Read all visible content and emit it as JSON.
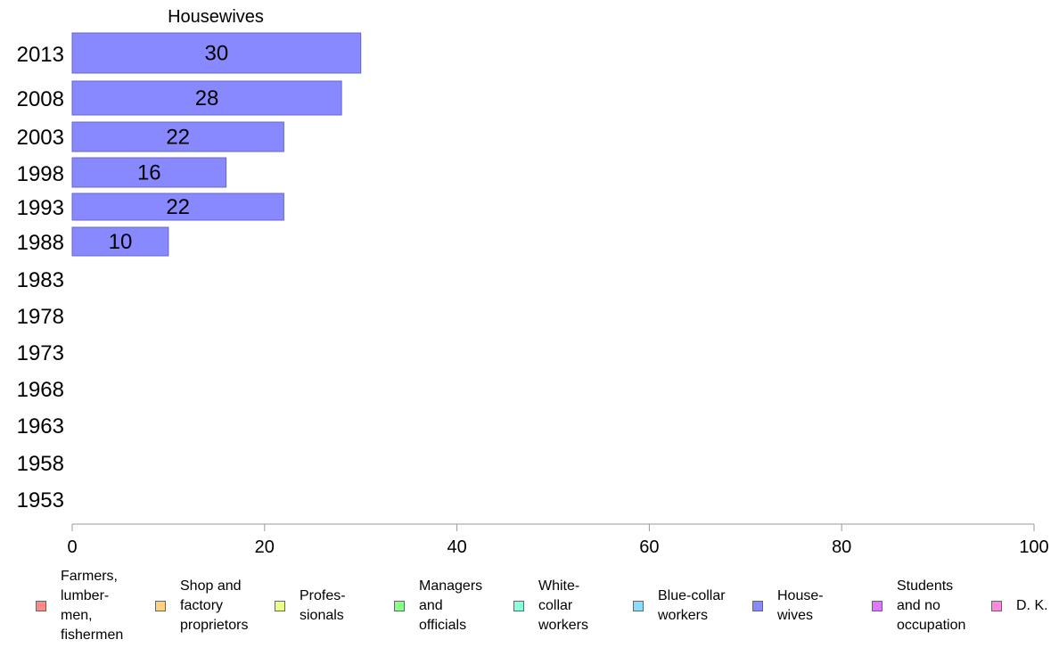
{
  "chart_data": {
    "type": "bar",
    "orientation": "horizontal",
    "title": "Housewives",
    "categories": [
      "2013",
      "2008",
      "2003",
      "1998",
      "1993",
      "1988",
      "1983",
      "1978",
      "1973",
      "1968",
      "1963",
      "1958",
      "1953"
    ],
    "series": [
      {
        "name": "House-\nwives",
        "values": [
          30,
          28,
          22,
          16,
          22,
          10,
          null,
          null,
          null,
          null,
          null,
          null,
          null
        ]
      }
    ],
    "data_labels": [
      "30",
      "28",
      "22",
      "16",
      "22",
      "10",
      "",
      "",
      "",
      "",
      "",
      "",
      ""
    ],
    "xlim": [
      0,
      100
    ],
    "x_ticks": [
      "0",
      "20",
      "40",
      "60",
      "80",
      "100"
    ],
    "grid": false,
    "legend_position": "bottom",
    "bar_color": "#8888ff",
    "bar_edge_color": "#6666cc"
  },
  "legend": {
    "items": [
      {
        "label": "Farmers,\nlumber-\nmen,\nfishermen",
        "color": "#ff8888"
      },
      {
        "label": "Shop and\nfactory\nproprietors",
        "color": "#ffd080"
      },
      {
        "label": "Profes-\nsionals",
        "color": "#e8ff88"
      },
      {
        "label": "Managers\nand\nofficials",
        "color": "#88ff88"
      },
      {
        "label": "White-\ncollar\nworkers",
        "color": "#88ffdd"
      },
      {
        "label": "Blue-collar\nworkers",
        "color": "#88ddff"
      },
      {
        "label": "House-\nwives",
        "color": "#8888ff"
      },
      {
        "label": "Students\nand no\noccupation",
        "color": "#dd77ff"
      },
      {
        "label": "D. K.",
        "color": "#ff88dd"
      }
    ]
  }
}
